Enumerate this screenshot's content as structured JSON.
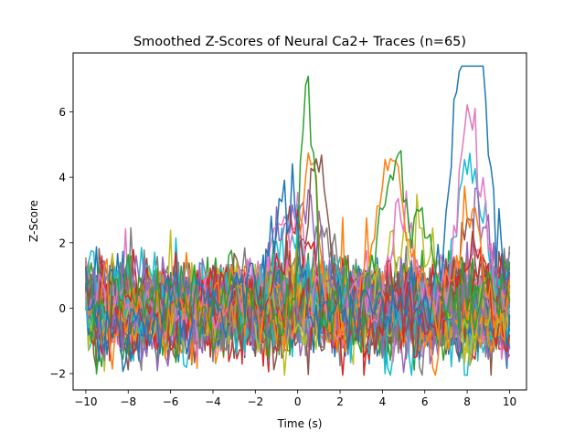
{
  "chart_data": {
    "type": "line",
    "title": "Smoothed Z-Scores of Neural Ca2+ Traces (n=65)",
    "xlabel": "Time (s)",
    "ylabel": "Z-Score",
    "xlim": [
      -10.6,
      10.8
    ],
    "ylim": [
      -2.5,
      7.8
    ],
    "x_ticks": [
      -10,
      -8,
      -6,
      -4,
      -2,
      0,
      2,
      4,
      6,
      8,
      10
    ],
    "y_ticks": [
      -2,
      0,
      2,
      4,
      6
    ],
    "x_tick_labels": [
      "−10",
      "−8",
      "−6",
      "−4",
      "−2",
      "0",
      "2",
      "4",
      "6",
      "8",
      "10"
    ],
    "y_tick_labels": [
      "−2",
      "0",
      "2",
      "4",
      "6"
    ],
    "grid": false,
    "legend": "none",
    "n_series": 65,
    "time_range": [
      -10,
      10
    ],
    "series_colors": [
      "#1f77b4",
      "#ff7f0e",
      "#2ca02c",
      "#d62728",
      "#9467bd",
      "#8c564b",
      "#e377c2",
      "#7f7f7f",
      "#bcbd22",
      "#17becf"
    ],
    "highlight_series": [
      {
        "color_index": 0,
        "events": [
          {
            "t": -0.6,
            "peak": 3.7,
            "width": 0.7
          },
          {
            "t": 8.1,
            "peak": 7.4,
            "width": 0.6
          },
          {
            "t": 8.5,
            "peak": 5.2,
            "width": 0.6
          }
        ]
      },
      {
        "color_index": 2,
        "events": [
          {
            "t": 0.5,
            "peak": 6.8,
            "width": 0.35
          },
          {
            "t": 4.6,
            "peak": 5.1,
            "width": 0.6
          },
          {
            "t": 6.0,
            "peak": 2.9,
            "width": 0.5
          }
        ]
      },
      {
        "color_index": 1,
        "events": [
          {
            "t": 0.6,
            "peak": 5.2,
            "width": 0.4
          },
          {
            "t": 4.5,
            "peak": 4.4,
            "width": 0.7
          },
          {
            "t": 8.0,
            "peak": 2.6,
            "width": 0.5
          }
        ]
      },
      {
        "color_index": 6,
        "events": [
          {
            "t": -0.5,
            "peak": 3.2,
            "width": 0.7
          },
          {
            "t": 4.8,
            "peak": 3.2,
            "width": 0.5
          },
          {
            "t": 8.2,
            "peak": 5.6,
            "width": 0.6
          }
        ]
      },
      {
        "color_index": 5,
        "events": [
          {
            "t": 0.9,
            "peak": 5.0,
            "width": 0.5
          },
          {
            "t": 8.0,
            "peak": 2.8,
            "width": 0.6
          }
        ]
      },
      {
        "color_index": 3,
        "events": [
          {
            "t": -0.2,
            "peak": 3.0,
            "width": 0.8
          },
          {
            "t": 8.3,
            "peak": 2.7,
            "width": 0.6
          }
        ]
      },
      {
        "color_index": 4,
        "events": [
          {
            "t": 0.0,
            "peak": 3.1,
            "width": 0.9
          },
          {
            "t": 8.6,
            "peak": 3.0,
            "width": 0.5
          }
        ]
      },
      {
        "color_index": 9,
        "events": [
          {
            "t": 8.2,
            "peak": 4.4,
            "width": 0.7
          },
          {
            "t": -0.4,
            "peak": 2.4,
            "width": 0.6
          }
        ]
      },
      {
        "color_index": 7,
        "events": [
          {
            "t": 1.2,
            "peak": 2.8,
            "width": 0.6
          }
        ]
      },
      {
        "color_index": 8,
        "events": [
          {
            "t": 5.5,
            "peak": 2.5,
            "width": 0.8
          }
        ]
      }
    ]
  }
}
